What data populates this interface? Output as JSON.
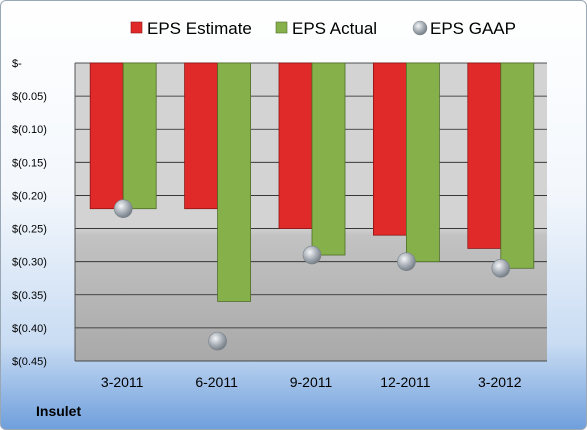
{
  "company": "Insulet",
  "chart_data": {
    "type": "bar",
    "categories": [
      "3-2011",
      "6-2011",
      "9-2011",
      "12-2011",
      "3-2012"
    ],
    "series": [
      {
        "name": "EPS Estimate",
        "type": "bar",
        "color": "#e02a2a",
        "values": [
          -0.22,
          -0.22,
          -0.25,
          -0.26,
          -0.28
        ]
      },
      {
        "name": "EPS Actual",
        "type": "bar",
        "color": "#86b04a",
        "values": [
          -0.22,
          -0.36,
          -0.29,
          -0.3,
          -0.31
        ]
      },
      {
        "name": "EPS GAAP",
        "type": "scatter",
        "color": "#a6adb5",
        "values": [
          -0.22,
          -0.42,
          -0.29,
          -0.3,
          -0.31
        ]
      }
    ],
    "y_ticks": [
      {
        "value": 0,
        "label": "$-"
      },
      {
        "value": -0.05,
        "label": "$(0.05)"
      },
      {
        "value": -0.1,
        "label": "$(0.10)"
      },
      {
        "value": -0.15,
        "label": "$(0.15)"
      },
      {
        "value": -0.2,
        "label": "$(0.20)"
      },
      {
        "value": -0.25,
        "label": "$(0.25)"
      },
      {
        "value": -0.3,
        "label": "$(0.30)"
      },
      {
        "value": -0.35,
        "label": "$(0.35)"
      },
      {
        "value": -0.4,
        "label": "$(0.40)"
      },
      {
        "value": -0.45,
        "label": "$(0.45)"
      }
    ],
    "ylim": [
      -0.45,
      0
    ],
    "legend_position": "top",
    "grid": true
  }
}
